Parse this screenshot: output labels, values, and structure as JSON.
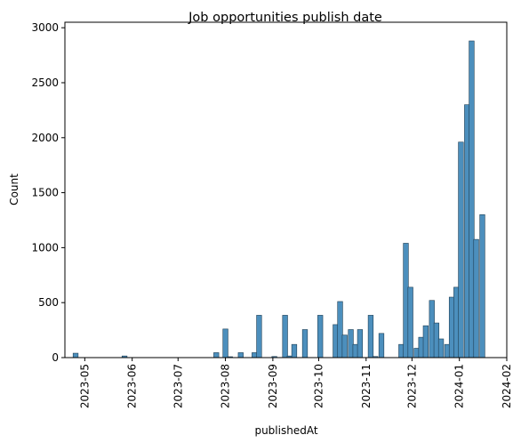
{
  "chart_data": {
    "type": "bar",
    "title": "Job opportunities publish date",
    "xlabel": "publishedAt",
    "ylabel": "Count",
    "ylim": [
      0,
      3050
    ],
    "xlim": [
      "2023-04-18",
      "2024-02-01"
    ],
    "grid": false,
    "legend": "none",
    "bar_color": "#4c8fbd",
    "edge_color": "#1f3f55",
    "y_ticks": [
      0,
      500,
      1000,
      1500,
      2000,
      2500,
      3000
    ],
    "x_ticks": [
      "2023-05",
      "2023-06",
      "2023-07",
      "2023-08",
      "2023-09",
      "2023-10",
      "2023-11",
      "2023-12",
      "2024-01",
      "2024-02"
    ],
    "bin_days": 3.3,
    "bars": [
      {
        "x": "2023-04-25",
        "count": 40
      },
      {
        "x": "2023-05-27",
        "count": 15
      },
      {
        "x": "2023-07-26",
        "count": 45
      },
      {
        "x": "2023-08-01",
        "count": 260
      },
      {
        "x": "2023-08-04",
        "count": 8
      },
      {
        "x": "2023-08-11",
        "count": 45
      },
      {
        "x": "2023-08-20",
        "count": 45
      },
      {
        "x": "2023-08-23",
        "count": 385
      },
      {
        "x": "2023-09-02",
        "count": 10
      },
      {
        "x": "2023-09-09",
        "count": 385
      },
      {
        "x": "2023-09-12",
        "count": 15
      },
      {
        "x": "2023-09-15",
        "count": 120
      },
      {
        "x": "2023-09-22",
        "count": 255
      },
      {
        "x": "2023-10-02",
        "count": 385
      },
      {
        "x": "2023-10-12",
        "count": 300
      },
      {
        "x": "2023-10-15",
        "count": 510
      },
      {
        "x": "2023-10-18",
        "count": 205
      },
      {
        "x": "2023-10-22",
        "count": 255
      },
      {
        "x": "2023-10-25",
        "count": 120
      },
      {
        "x": "2023-10-28",
        "count": 255
      },
      {
        "x": "2023-11-04",
        "count": 385
      },
      {
        "x": "2023-11-07",
        "count": 10
      },
      {
        "x": "2023-11-11",
        "count": 220
      },
      {
        "x": "2023-11-24",
        "count": 120
      },
      {
        "x": "2023-11-27",
        "count": 1040
      },
      {
        "x": "2023-11-30",
        "count": 640
      },
      {
        "x": "2023-12-04",
        "count": 85
      },
      {
        "x": "2023-12-07",
        "count": 185
      },
      {
        "x": "2023-12-10",
        "count": 290
      },
      {
        "x": "2023-12-14",
        "count": 520
      },
      {
        "x": "2023-12-17",
        "count": 315
      },
      {
        "x": "2023-12-20",
        "count": 170
      },
      {
        "x": "2023-12-24",
        "count": 120
      },
      {
        "x": "2023-12-27",
        "count": 550
      },
      {
        "x": "2023-12-30",
        "count": 640
      },
      {
        "x": "2024-01-02",
        "count": 1960
      },
      {
        "x": "2024-01-06",
        "count": 2300
      },
      {
        "x": "2024-01-09",
        "count": 2880
      },
      {
        "x": "2024-01-12",
        "count": 1075
      },
      {
        "x": "2024-01-16",
        "count": 1300
      }
    ]
  }
}
